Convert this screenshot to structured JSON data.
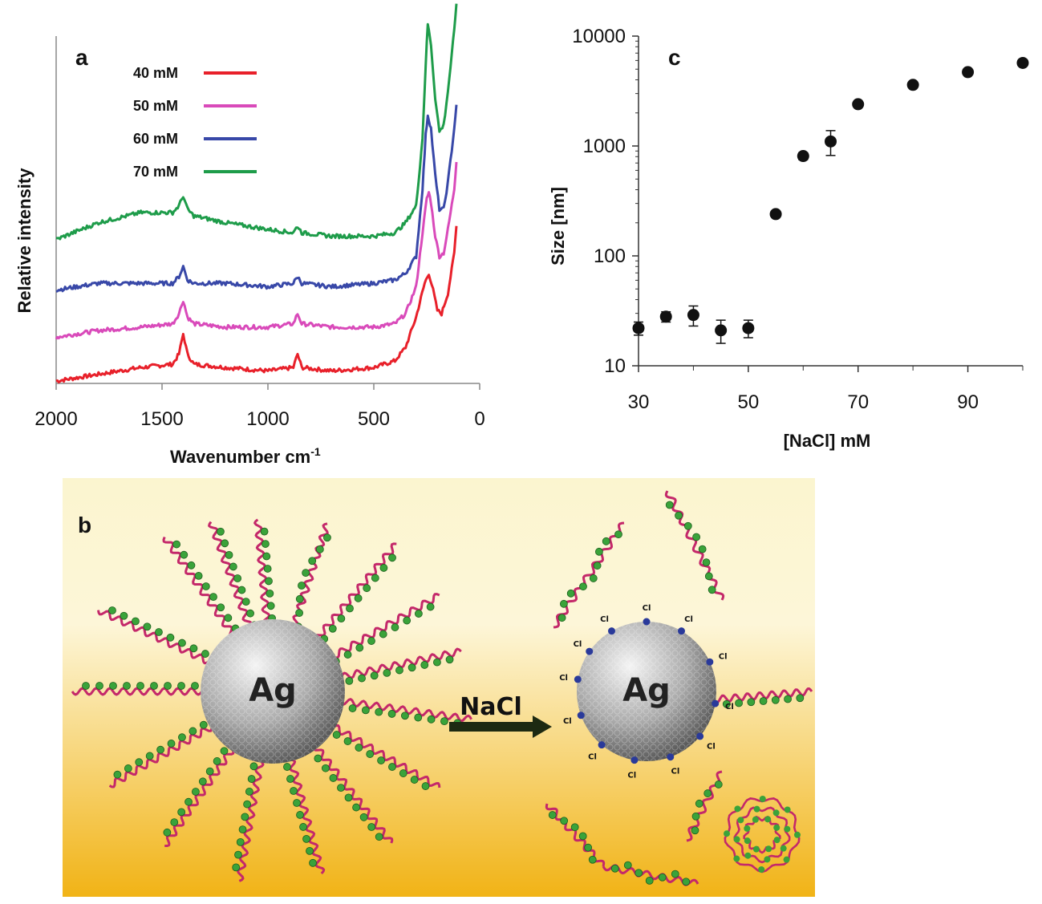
{
  "chart_data": [
    {
      "panel": "a",
      "type": "line",
      "xlabel": "Wavenumber cm",
      "xlabel_sup": "-1",
      "ylabel": "Relative intensity",
      "xlim": [
        2000,
        0
      ],
      "xticks": [
        "2000",
        "1500",
        "1000",
        "500",
        "0"
      ],
      "legend_position": "top-left",
      "series": [
        {
          "name": "40 mM",
          "color": "#e8202a",
          "offset": 0.0,
          "x": [
            2000,
            1800,
            1600,
            1450,
            1420,
            1400,
            1380,
            1350,
            1200,
            1000,
            880,
            860,
            840,
            700,
            500,
            400,
            350,
            300,
            260,
            240,
            220,
            200,
            180,
            150,
            120,
            110
          ],
          "y": [
            0.0,
            0.02,
            0.04,
            0.05,
            0.08,
            0.14,
            0.08,
            0.05,
            0.04,
            0.03,
            0.04,
            0.08,
            0.04,
            0.03,
            0.04,
            0.06,
            0.1,
            0.19,
            0.29,
            0.32,
            0.27,
            0.21,
            0.2,
            0.26,
            0.38,
            0.46
          ]
        },
        {
          "name": "50 mM",
          "color": "#d94aba",
          "offset": 0.13,
          "x": [
            2000,
            1800,
            1600,
            1450,
            1420,
            1400,
            1380,
            1350,
            1200,
            1000,
            880,
            860,
            840,
            700,
            500,
            400,
            350,
            300,
            270,
            250,
            240,
            230,
            210,
            190,
            170,
            150,
            120,
            110
          ],
          "y": [
            0.0,
            0.02,
            0.03,
            0.04,
            0.07,
            0.11,
            0.06,
            0.04,
            0.03,
            0.03,
            0.04,
            0.07,
            0.04,
            0.03,
            0.03,
            0.04,
            0.07,
            0.15,
            0.31,
            0.41,
            0.43,
            0.4,
            0.3,
            0.24,
            0.25,
            0.32,
            0.44,
            0.52
          ]
        },
        {
          "name": "60 mM",
          "color": "#3848a8",
          "offset": 0.27,
          "x": [
            2000,
            1800,
            1600,
            1450,
            1420,
            1400,
            1380,
            1350,
            1200,
            1000,
            880,
            860,
            840,
            700,
            500,
            400,
            350,
            300,
            270,
            255,
            245,
            230,
            210,
            190,
            170,
            150,
            120,
            110
          ],
          "y": [
            0.0,
            0.02,
            0.02,
            0.02,
            0.04,
            0.07,
            0.03,
            0.02,
            0.02,
            0.01,
            0.02,
            0.04,
            0.02,
            0.01,
            0.02,
            0.03,
            0.05,
            0.1,
            0.3,
            0.46,
            0.52,
            0.48,
            0.34,
            0.24,
            0.24,
            0.32,
            0.48,
            0.55
          ]
        },
        {
          "name": "70 mM",
          "color": "#1e9c4a",
          "offset": 0.42,
          "x": [
            2000,
            1800,
            1600,
            1450,
            1420,
            1400,
            1380,
            1350,
            1200,
            1000,
            880,
            860,
            840,
            700,
            500,
            400,
            350,
            300,
            270,
            255,
            245,
            230,
            210,
            190,
            170,
            150,
            120,
            110
          ],
          "y": [
            0.0,
            0.05,
            0.08,
            0.08,
            0.1,
            0.13,
            0.09,
            0.07,
            0.05,
            0.03,
            0.02,
            0.04,
            0.02,
            0.01,
            0.01,
            0.02,
            0.05,
            0.1,
            0.3,
            0.52,
            0.64,
            0.58,
            0.42,
            0.32,
            0.34,
            0.44,
            0.62,
            0.7
          ]
        }
      ]
    },
    {
      "panel": "c",
      "type": "scatter",
      "xlabel": "[NaCl] mM",
      "ylabel": "Size [nm]",
      "yscale": "log",
      "xlim": [
        30,
        100
      ],
      "ylim": [
        10,
        10000
      ],
      "xticks": [
        "30",
        "50",
        "70",
        "90"
      ],
      "yticks": [
        "10",
        "100",
        "1000",
        "10000"
      ],
      "points": [
        {
          "x": 30,
          "y": 22,
          "err": 3
        },
        {
          "x": 35,
          "y": 28,
          "err": 3
        },
        {
          "x": 40,
          "y": 29,
          "err": 6
        },
        {
          "x": 45,
          "y": 21,
          "err": 5
        },
        {
          "x": 50,
          "y": 22,
          "err": 4
        },
        {
          "x": 55,
          "y": 240,
          "err": 15
        },
        {
          "x": 60,
          "y": 810,
          "err": 60
        },
        {
          "x": 65,
          "y": 1100,
          "err": 280
        },
        {
          "x": 70,
          "y": 2400,
          "err": 150
        },
        {
          "x": 80,
          "y": 3600,
          "err": 200
        },
        {
          "x": 90,
          "y": 4700,
          "err": 250
        },
        {
          "x": 100,
          "y": 5700,
          "err": 300
        }
      ]
    }
  ],
  "panels": {
    "a": {
      "letter": "a"
    },
    "b": {
      "letter": "b",
      "particle_label": "Ag",
      "reagent_label": "NaCl",
      "chloride_label": "Cl"
    },
    "c": {
      "letter": "c"
    }
  },
  "colors": {
    "background_top": "#fffdf0",
    "background_bottom": "#f1b316",
    "strand": "#c4286a",
    "charge": "#3aa33a",
    "chloride": "#2a3a9a"
  }
}
